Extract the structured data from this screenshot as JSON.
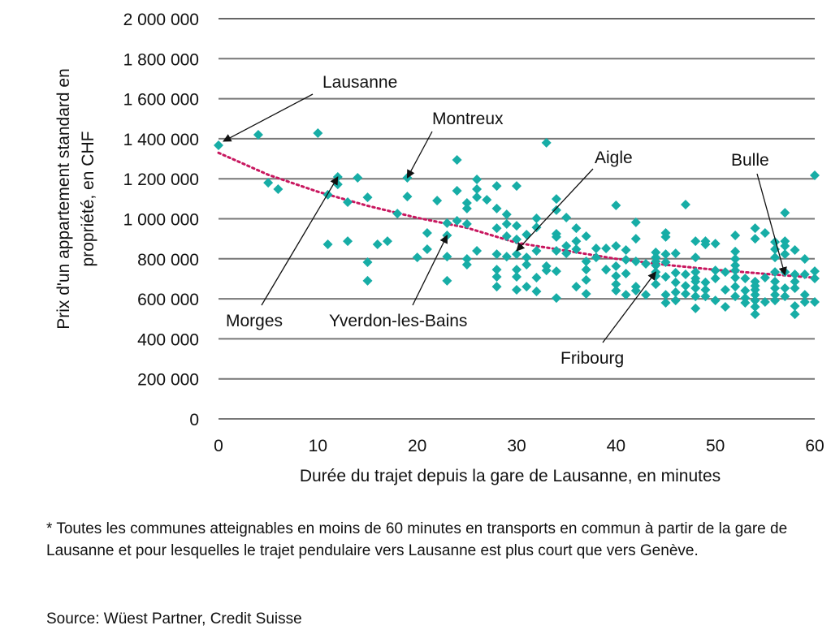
{
  "chart_data": {
    "type": "scatter",
    "xlabel": "Durée du trajet depuis la gare de Lausanne, en minutes",
    "ylabel_lines": [
      "Prix d'un appartement standard en",
      "propriété, en CHF"
    ],
    "xlim": [
      0,
      60
    ],
    "ylim": [
      0,
      2000000
    ],
    "x_ticks": [
      0,
      10,
      20,
      30,
      40,
      50,
      60
    ],
    "x_tick_labels": [
      "0",
      "10",
      "20",
      "30",
      "40",
      "50",
      "60"
    ],
    "y_ticks": [
      0,
      200000,
      400000,
      600000,
      800000,
      1000000,
      1200000,
      1400000,
      1600000,
      1800000,
      2000000
    ],
    "y_tick_labels": [
      "0",
      "200 000",
      "400 000",
      "600 000",
      "800 000",
      "1 000 000",
      "1 200 000",
      "1 400 000",
      "1 600 000",
      "1 800 000",
      "2 000 000"
    ],
    "grid": "horizontal",
    "colors": {
      "points": "#17ada6",
      "trend": "#c8175f",
      "grid": "#777777"
    },
    "points_unit_note": "y in CHF",
    "points": [
      [
        0,
        1367000
      ],
      [
        4,
        1420000
      ],
      [
        10,
        1428000
      ],
      [
        5,
        1180000
      ],
      [
        6,
        1148000
      ],
      [
        12,
        1209000
      ],
      [
        12,
        1172000
      ],
      [
        14,
        1205000
      ],
      [
        19,
        1205000
      ],
      [
        11,
        1120000
      ],
      [
        13,
        1083000
      ],
      [
        15,
        1107000
      ],
      [
        19,
        1111000
      ],
      [
        18,
        1026000
      ],
      [
        11,
        872000
      ],
      [
        13,
        888000
      ],
      [
        16,
        872000
      ],
      [
        17,
        888000
      ],
      [
        15,
        783000
      ],
      [
        15,
        690000
      ],
      [
        33,
        1380000
      ],
      [
        24,
        1294000
      ],
      [
        26,
        1197000
      ],
      [
        24,
        1140000
      ],
      [
        26,
        1148000
      ],
      [
        26,
        1108000
      ],
      [
        28,
        1164000
      ],
      [
        30,
        1164000
      ],
      [
        22,
        1091000
      ],
      [
        25,
        1079000
      ],
      [
        25,
        1051000
      ],
      [
        27,
        1095000
      ],
      [
        28,
        1051000
      ],
      [
        34,
        1099000
      ],
      [
        34,
        1043000
      ],
      [
        29,
        1022000
      ],
      [
        32,
        1002000
      ],
      [
        35,
        1006000
      ],
      [
        23,
        978000
      ],
      [
        24,
        990000
      ],
      [
        25,
        974000
      ],
      [
        29,
        974000
      ],
      [
        30,
        965000
      ],
      [
        32,
        957000
      ],
      [
        21,
        929000
      ],
      [
        23,
        917000
      ],
      [
        28,
        953000
      ],
      [
        31,
        921000
      ],
      [
        29,
        913000
      ],
      [
        30,
        897000
      ],
      [
        34,
        925000
      ],
      [
        34,
        909000
      ],
      [
        36,
        953000
      ],
      [
        36,
        888000
      ],
      [
        36,
        848000
      ],
      [
        37,
        913000
      ],
      [
        38,
        852000
      ],
      [
        21,
        848000
      ],
      [
        26,
        840000
      ],
      [
        20,
        807000
      ],
      [
        23,
        811000
      ],
      [
        25,
        799000
      ],
      [
        25,
        771000
      ],
      [
        28,
        823000
      ],
      [
        29,
        811000
      ],
      [
        30,
        823000
      ],
      [
        31,
        807000
      ],
      [
        31,
        771000
      ],
      [
        32,
        840000
      ],
      [
        34,
        840000
      ],
      [
        35,
        864000
      ],
      [
        35,
        827000
      ],
      [
        37,
        787000
      ],
      [
        38,
        807000
      ],
      [
        39,
        746000
      ],
      [
        23,
        690000
      ],
      [
        28,
        746000
      ],
      [
        28,
        710000
      ],
      [
        28,
        661000
      ],
      [
        30,
        746000
      ],
      [
        30,
        710000
      ],
      [
        30,
        645000
      ],
      [
        31,
        661000
      ],
      [
        32,
        706000
      ],
      [
        32,
        637000
      ],
      [
        33,
        763000
      ],
      [
        33,
        742000
      ],
      [
        34,
        738000
      ],
      [
        34,
        604000
      ],
      [
        36,
        661000
      ],
      [
        37,
        746000
      ],
      [
        37,
        694000
      ],
      [
        37,
        625000
      ],
      [
        60,
        1217000
      ],
      [
        40,
        1067000
      ],
      [
        47,
        1071000
      ],
      [
        57,
        1030000
      ],
      [
        42,
        982000
      ],
      [
        42,
        900000
      ],
      [
        45,
        929000
      ],
      [
        45,
        909000
      ],
      [
        52,
        917000
      ],
      [
        54,
        953000
      ],
      [
        55,
        929000
      ],
      [
        54,
        900000
      ],
      [
        39,
        852000
      ],
      [
        40,
        864000
      ],
      [
        41,
        844000
      ],
      [
        48,
        888000
      ],
      [
        49,
        888000
      ],
      [
        49,
        872000
      ],
      [
        50,
        876000
      ],
      [
        44,
        832000
      ],
      [
        45,
        823000
      ],
      [
        46,
        827000
      ],
      [
        52,
        836000
      ],
      [
        56,
        884000
      ],
      [
        57,
        888000
      ],
      [
        56,
        848000
      ],
      [
        57,
        864000
      ],
      [
        58,
        844000
      ],
      [
        56,
        807000
      ],
      [
        57,
        823000
      ],
      [
        59,
        799000
      ],
      [
        39,
        746000
      ],
      [
        40,
        763000
      ],
      [
        41,
        795000
      ],
      [
        42,
        787000
      ],
      [
        43,
        775000
      ],
      [
        44,
        807000
      ],
      [
        44,
        787000
      ],
      [
        44,
        767000
      ],
      [
        45,
        783000
      ],
      [
        48,
        807000
      ],
      [
        52,
        799000
      ],
      [
        52,
        767000
      ],
      [
        40,
        714000
      ],
      [
        41,
        726000
      ],
      [
        44,
        734000
      ],
      [
        44,
        714000
      ],
      [
        44,
        673000
      ],
      [
        45,
        710000
      ],
      [
        46,
        730000
      ],
      [
        47,
        722000
      ],
      [
        48,
        734000
      ],
      [
        48,
        702000
      ],
      [
        50,
        742000
      ],
      [
        50,
        702000
      ],
      [
        51,
        734000
      ],
      [
        52,
        742000
      ],
      [
        52,
        706000
      ],
      [
        53,
        702000
      ],
      [
        54,
        686000
      ],
      [
        54,
        665000
      ],
      [
        54,
        645000
      ],
      [
        54,
        620000
      ],
      [
        55,
        706000
      ],
      [
        56,
        734000
      ],
      [
        56,
        686000
      ],
      [
        56,
        653000
      ],
      [
        56,
        620000
      ],
      [
        57,
        734000
      ],
      [
        57,
        653000
      ],
      [
        57,
        612000
      ],
      [
        58,
        722000
      ],
      [
        58,
        686000
      ],
      [
        58,
        653000
      ],
      [
        59,
        722000
      ],
      [
        59,
        620000
      ],
      [
        60,
        738000
      ],
      [
        60,
        702000
      ],
      [
        60,
        584000
      ],
      [
        40,
        673000
      ],
      [
        40,
        641000
      ],
      [
        41,
        620000
      ],
      [
        42,
        661000
      ],
      [
        42,
        641000
      ],
      [
        43,
        620000
      ],
      [
        45,
        620000
      ],
      [
        45,
        580000
      ],
      [
        46,
        682000
      ],
      [
        46,
        633000
      ],
      [
        46,
        592000
      ],
      [
        47,
        665000
      ],
      [
        47,
        625000
      ],
      [
        48,
        686000
      ],
      [
        48,
        653000
      ],
      [
        48,
        612000
      ],
      [
        48,
        552000
      ],
      [
        49,
        682000
      ],
      [
        49,
        645000
      ],
      [
        49,
        612000
      ],
      [
        50,
        592000
      ],
      [
        51,
        645000
      ],
      [
        51,
        560000
      ],
      [
        52,
        661000
      ],
      [
        52,
        612000
      ],
      [
        53,
        641000
      ],
      [
        53,
        604000
      ],
      [
        53,
        580000
      ],
      [
        54,
        592000
      ],
      [
        54,
        560000
      ],
      [
        54,
        523000
      ],
      [
        55,
        584000
      ],
      [
        56,
        592000
      ],
      [
        58,
        564000
      ],
      [
        58,
        523000
      ],
      [
        59,
        584000
      ]
    ],
    "trend": [
      [
        0,
        1330000
      ],
      [
        5,
        1220000
      ],
      [
        10,
        1135000
      ],
      [
        15,
        1065000
      ],
      [
        20,
        1005000
      ],
      [
        25,
        955000
      ],
      [
        30,
        880000
      ],
      [
        35,
        840000
      ],
      [
        40,
        800000
      ],
      [
        45,
        770000
      ],
      [
        50,
        745000
      ],
      [
        55,
        725000
      ],
      [
        60,
        705000
      ]
    ],
    "annotations": [
      {
        "text": "Lausanne",
        "x": 0,
        "y": 1367000
      },
      {
        "text": "Montreux",
        "x": 19,
        "y": 1205000
      },
      {
        "text": "Aigle",
        "x": 30,
        "y": 840000
      },
      {
        "text": "Bulle",
        "x": 57,
        "y": 720000
      },
      {
        "text": "Morges",
        "x": 12,
        "y": 1209000
      },
      {
        "text": "Yverdon-les-Bains",
        "x": 23,
        "y": 917000
      },
      {
        "text": "Fribourg",
        "x": 44,
        "y": 734000
      }
    ]
  },
  "footnote": "* Toutes les communes atteignables en moins de 60 minutes en transports en commun à partir de la gare de Lausanne et pour lesquelles le trajet pendulaire vers Lausanne est plus court que vers Genève.",
  "source": "Source: Wüest Partner, Credit Suisse"
}
